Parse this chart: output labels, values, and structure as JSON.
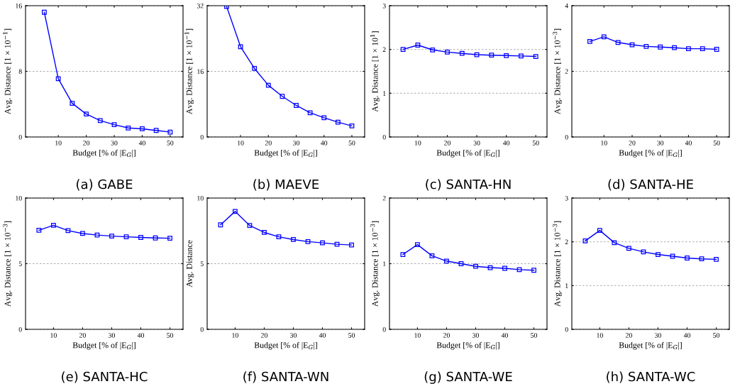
{
  "chart_data": [
    {
      "type": "line",
      "title": "(a) GABE",
      "xlabel": "Budget [% of |E$_{G}$|]",
      "ylabel": "Avg. Distance [1 × 10$^{−1}$]",
      "x": [
        5,
        10,
        15,
        20,
        25,
        30,
        35,
        40,
        45,
        50
      ],
      "series": [
        {
          "color": "#0000ff",
          "values": [
            15.2,
            7.1,
            4.1,
            2.8,
            2.0,
            1.5,
            1.1,
            1.0,
            0.8,
            0.6
          ]
        }
      ],
      "xlim": [
        -1.7,
        54.6
      ],
      "xticks": [
        10,
        20,
        30,
        40,
        50
      ],
      "ylim": [
        0,
        16
      ],
      "yticks": [
        0,
        8,
        16
      ],
      "grid": "y",
      "marker": "square"
    },
    {
      "type": "line",
      "title": "(b) MAEVE",
      "xlabel": "Budget [% of |E$_{G}$|]",
      "ylabel": "Avg. Distance [1 × 10$^{−1}$]",
      "x": [
        5,
        10,
        15,
        20,
        25,
        30,
        35,
        40,
        45,
        50
      ],
      "series": [
        {
          "color": "#0000ff",
          "values": [
            31.8,
            22.0,
            16.7,
            12.6,
            9.9,
            7.7,
            5.9,
            4.7,
            3.6,
            2.7
          ]
        }
      ],
      "xlim": [
        -2,
        54.6
      ],
      "xticks": [
        10,
        20,
        30,
        40,
        50
      ],
      "ylim": [
        0,
        32
      ],
      "yticks": [
        0,
        16,
        32
      ],
      "grid": "y",
      "marker": "square"
    },
    {
      "type": "line",
      "title": "(c) SANTA-HN",
      "xlabel": "Budget [% of |E$_{G}$|]",
      "ylabel": "Avg. Distance [1 × 10$^{1}$]",
      "x": [
        5,
        10,
        15,
        20,
        25,
        30,
        35,
        40,
        45,
        50
      ],
      "series": [
        {
          "color": "#0000ff",
          "values": [
            2.0,
            2.1,
            1.99,
            1.94,
            1.91,
            1.88,
            1.87,
            1.86,
            1.85,
            1.84
          ]
        }
      ],
      "xlim": [
        0.4,
        53.8
      ],
      "xticks": [
        10,
        20,
        30,
        40,
        50
      ],
      "ylim": [
        0,
        3
      ],
      "yticks": [
        0,
        1,
        2,
        3
      ],
      "grid": "y",
      "marker": "square"
    },
    {
      "type": "line",
      "title": "(d) SANTA-HE",
      "xlabel": "Budget [% of |E$_{G}$|]",
      "ylabel": "Avg. Distance [1 × 10$^{−3}$]",
      "x": [
        5,
        10,
        15,
        20,
        25,
        30,
        35,
        40,
        45,
        50
      ],
      "series": [
        {
          "color": "#0000ff",
          "values": [
            2.91,
            3.05,
            2.88,
            2.81,
            2.76,
            2.74,
            2.72,
            2.69,
            2.69,
            2.67
          ]
        }
      ],
      "xlim": [
        -1.4,
        54.5
      ],
      "xticks": [
        10,
        20,
        30,
        40,
        50
      ],
      "ylim": [
        0,
        4
      ],
      "yticks": [
        0,
        2,
        4
      ],
      "grid": "y",
      "marker": "square"
    },
    {
      "type": "line",
      "title": "(e) SANTA-HC",
      "xlabel": "Budget [% of |E$_{G}$|]",
      "ylabel": "Avg. Distance [1 × 10$^{−3}$]",
      "x": [
        5,
        10,
        15,
        20,
        25,
        30,
        35,
        40,
        45,
        50
      ],
      "series": [
        {
          "color": "#0000ff",
          "values": [
            7.55,
            7.93,
            7.52,
            7.3,
            7.18,
            7.1,
            7.05,
            7.0,
            6.96,
            6.94
          ]
        }
      ],
      "xlim": [
        0.4,
        54.5
      ],
      "xticks": [
        10,
        20,
        30,
        40,
        50
      ],
      "ylim": [
        0,
        10
      ],
      "yticks": [
        0,
        5,
        10
      ],
      "grid": "y",
      "marker": "square"
    },
    {
      "type": "line",
      "title": "(f) SANTA-WN",
      "xlabel": "Budget [% of |E$_{G}$|]",
      "ylabel": "Avg. Distance",
      "x": [
        5,
        10,
        15,
        20,
        25,
        30,
        35,
        40,
        45,
        50
      ],
      "series": [
        {
          "color": "#0000ff",
          "values": [
            7.96,
            8.98,
            7.91,
            7.38,
            7.05,
            6.84,
            6.68,
            6.59,
            6.48,
            6.43
          ]
        }
      ],
      "xlim": [
        0.4,
        54.5
      ],
      "xticks": [
        10,
        20,
        30,
        40,
        50
      ],
      "ylim": [
        0,
        10
      ],
      "yticks": [
        0,
        5,
        10
      ],
      "grid": "y",
      "marker": "square"
    },
    {
      "type": "line",
      "title": "(g) SANTA-WE",
      "xlabel": "Budget [% of |E$_{G}$|]",
      "ylabel": "Avg. Distance [1 × 10$^{−3}$]",
      "x": [
        5,
        10,
        15,
        20,
        25,
        30,
        35,
        40,
        45,
        50
      ],
      "series": [
        {
          "color": "#0000ff",
          "values": [
            1.14,
            1.29,
            1.12,
            1.04,
            1.0,
            0.96,
            0.94,
            0.93,
            0.91,
            0.9
          ]
        }
      ],
      "xlim": [
        0.4,
        54.5
      ],
      "xticks": [
        10,
        20,
        30,
        40,
        50
      ],
      "ylim": [
        0,
        2
      ],
      "yticks": [
        0,
        1,
        2
      ],
      "grid": "y",
      "marker": "square"
    },
    {
      "type": "line",
      "title": "(h) SANTA-WC",
      "xlabel": "Budget [% of |E$_{G}$|]",
      "ylabel": "Avg. Distance [1 × 10$^{−3}$]",
      "x": [
        5,
        10,
        15,
        20,
        25,
        30,
        35,
        40,
        45,
        50
      ],
      "series": [
        {
          "color": "#0000ff",
          "values": [
            2.02,
            2.26,
            1.98,
            1.85,
            1.77,
            1.71,
            1.67,
            1.63,
            1.61,
            1.6
          ]
        }
      ],
      "xlim": [
        0.4,
        54.5
      ],
      "xticks": [
        10,
        20,
        30,
        40,
        50
      ],
      "ylim": [
        0,
        3
      ],
      "yticks": [
        0,
        1,
        2,
        3
      ],
      "grid": "y",
      "marker": "square"
    }
  ]
}
